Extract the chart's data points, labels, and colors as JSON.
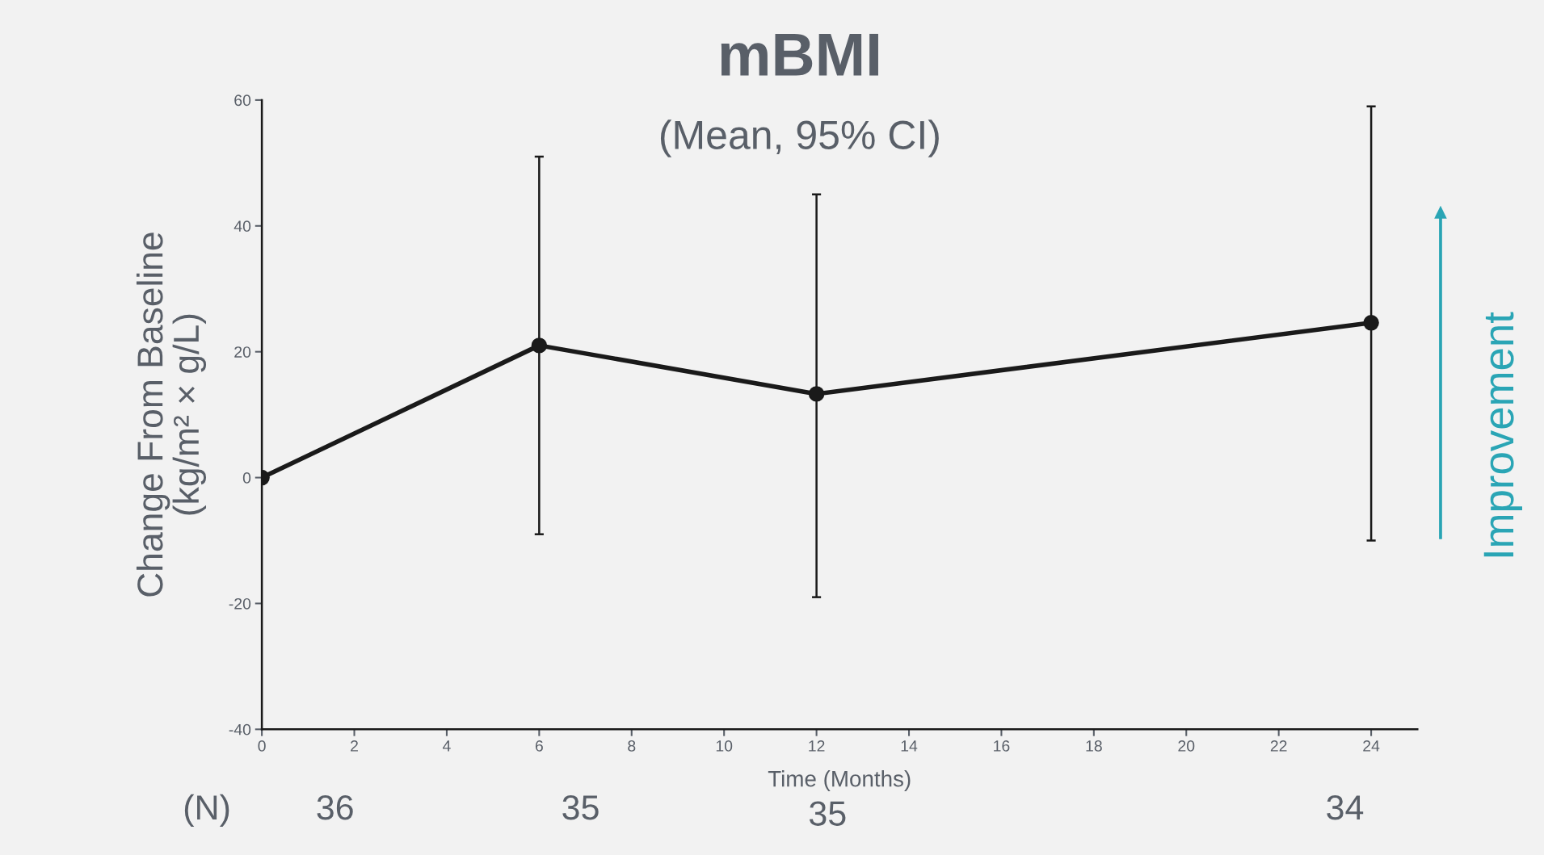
{
  "chart_data": {
    "type": "line",
    "title": "mBMI",
    "subtitle": "(Mean, 95% CI)",
    "xlabel": "Time (Months)",
    "ylabel": "Change From Baseline\n(kg/m² × g/L)",
    "x": [
      0,
      6,
      12,
      24
    ],
    "series": [
      {
        "color": "#1a1a1a",
        "values": [
          0,
          21,
          13.3,
          24.6
        ],
        "errors": [
          null,
          [
            -9,
            51
          ],
          [
            -19,
            45
          ],
          [
            -10,
            59
          ]
        ]
      }
    ],
    "xlim": [
      0,
      25
    ],
    "xticks": [
      0,
      2,
      4,
      6,
      8,
      10,
      12,
      14,
      16,
      18,
      20,
      22,
      24
    ],
    "ylim": [
      -40,
      60
    ],
    "yticks": [
      -40,
      -20,
      0,
      20,
      40,
      60
    ],
    "marker": "circle",
    "line_style": "solid",
    "grid": false,
    "legend": false,
    "annotations": [
      "Improvement",
      "(N)",
      "36",
      "35",
      "35",
      "34"
    ]
  }
}
